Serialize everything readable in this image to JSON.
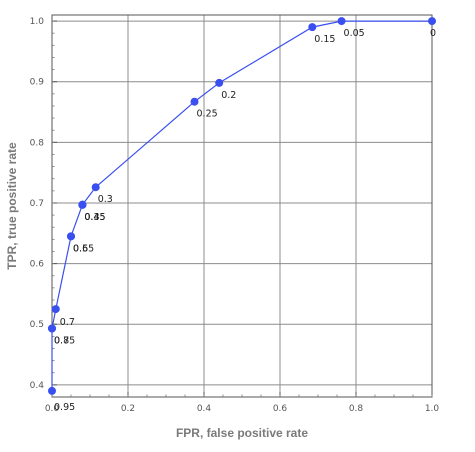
{
  "chart_data": {
    "type": "line",
    "title": "",
    "xlabel": "FPR, false positive rate",
    "ylabel": "TPR, true positive rate",
    "xlim": [
      0,
      1
    ],
    "ylim": [
      0.38,
      1.01
    ],
    "x_ticks": [
      "0.0",
      "0.2",
      "0.4",
      "0.6",
      "0.8",
      "1.0"
    ],
    "y_ticks": [
      "0.4",
      "0.5",
      "0.6",
      "0.7",
      "0.8",
      "0.9",
      "1.0"
    ],
    "grid": true,
    "marker": "circle",
    "series_color": "#3a4ff0",
    "points": [
      {
        "x": 0.0,
        "y": 0.39,
        "label": "0.95"
      },
      {
        "x": 0.0,
        "y": 0.493,
        "label": "0.8"
      },
      {
        "x": 0.0,
        "y": 0.493,
        "label": "0.75"
      },
      {
        "x": 0.01,
        "y": 0.525,
        "label": "0.7"
      },
      {
        "x": 0.05,
        "y": 0.645,
        "label": "0.6"
      },
      {
        "x": 0.05,
        "y": 0.645,
        "label": "0.55"
      },
      {
        "x": 0.08,
        "y": 0.697,
        "label": "0.4"
      },
      {
        "x": 0.08,
        "y": 0.697,
        "label": "0.45"
      },
      {
        "x": 0.08,
        "y": 0.697,
        "label": "0.35"
      },
      {
        "x": 0.115,
        "y": 0.726,
        "label": "0.3"
      },
      {
        "x": 0.375,
        "y": 0.867,
        "label": "0.25"
      },
      {
        "x": 0.44,
        "y": 0.898,
        "label": "0.2"
      },
      {
        "x": 0.685,
        "y": 0.99,
        "label": "0.15"
      },
      {
        "x": 0.762,
        "y": 1.0,
        "label": "0.05"
      },
      {
        "x": 1.0,
        "y": 1.0,
        "label": "0"
      }
    ]
  }
}
